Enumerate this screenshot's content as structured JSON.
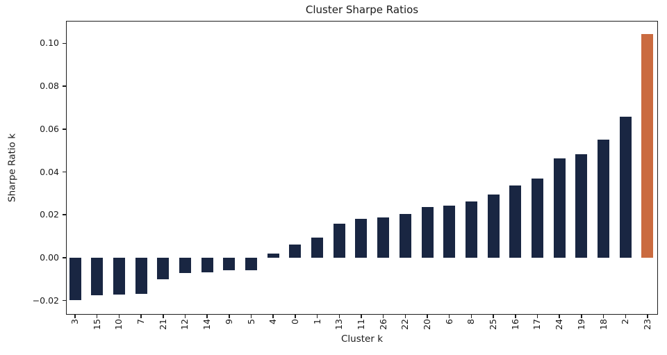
{
  "chart_data": {
    "type": "bar",
    "title": "Cluster Sharpe Ratios",
    "xlabel": "Cluster k",
    "ylabel": "Sharpe Ratio k",
    "categories": [
      "3",
      "15",
      "10",
      "7",
      "21",
      "12",
      "14",
      "9",
      "5",
      "4",
      "0",
      "1",
      "13",
      "11",
      "26",
      "22",
      "20",
      "6",
      "8",
      "25",
      "16",
      "17",
      "24",
      "19",
      "18",
      "2",
      "23"
    ],
    "values": [
      -0.0198,
      -0.0175,
      -0.0172,
      -0.017,
      -0.01,
      -0.0071,
      -0.0067,
      -0.006,
      -0.0058,
      0.002,
      0.0062,
      0.0094,
      0.0159,
      0.0181,
      0.0188,
      0.0204,
      0.0237,
      0.0243,
      0.0263,
      0.0295,
      0.0337,
      0.0369,
      0.0463,
      0.0483,
      0.0551,
      0.0658,
      0.1045
    ],
    "highlight_category": "23",
    "bar_color": "#192642",
    "highlight_color": "#ca6b40",
    "ylim": [
      -0.0266,
      0.1105
    ],
    "yticks": [
      0.1,
      0.08,
      0.06,
      0.04,
      0.02,
      0.0,
      -0.02
    ],
    "ytick_labels": [
      "0.10",
      "0.08",
      "0.06",
      "0.04",
      "0.02",
      "0.00",
      "−0.02"
    ],
    "x_tick_rotation": 90,
    "grid": false,
    "legend": false,
    "sorted": "ascending"
  }
}
